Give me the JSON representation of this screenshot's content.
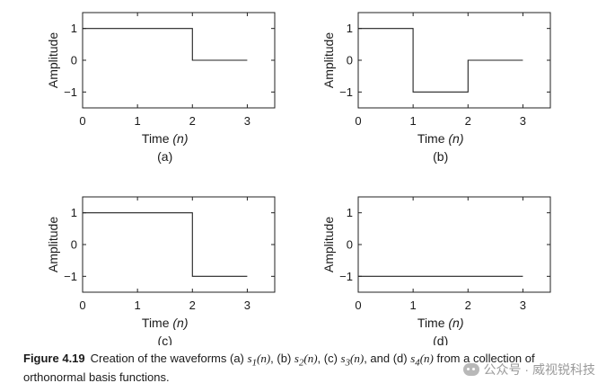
{
  "chart_data": [
    {
      "type": "line",
      "step": true,
      "panel_label": "(a)",
      "xlabel": "Time",
      "xlabel_var": "(n)",
      "ylabel": "Amplitude",
      "xlim": [
        0,
        3
      ],
      "ylim": [
        -1.5,
        1.5
      ],
      "xticks": [
        0,
        1,
        2,
        3
      ],
      "yticks": [
        1,
        0,
        -1
      ],
      "ytick_labels": [
        "1",
        "0",
        "−1"
      ],
      "x": [
        0,
        2,
        2,
        3
      ],
      "y": [
        1,
        1,
        0,
        0
      ]
    },
    {
      "type": "line",
      "step": true,
      "panel_label": "(b)",
      "xlabel": "Time",
      "xlabel_var": "(n)",
      "ylabel": "Amplitude",
      "xlim": [
        0,
        3
      ],
      "ylim": [
        -1.5,
        1.5
      ],
      "xticks": [
        0,
        1,
        2,
        3
      ],
      "yticks": [
        1,
        0,
        -1
      ],
      "ytick_labels": [
        "1",
        "0",
        "−1"
      ],
      "x": [
        0,
        1,
        1,
        2,
        2,
        3
      ],
      "y": [
        1,
        1,
        -1,
        -1,
        0,
        0
      ]
    },
    {
      "type": "line",
      "step": true,
      "panel_label": "(c)",
      "xlabel": "Time",
      "xlabel_var": "(n)",
      "ylabel": "Amplitude",
      "xlim": [
        0,
        3
      ],
      "ylim": [
        -1.5,
        1.5
      ],
      "xticks": [
        0,
        1,
        2,
        3
      ],
      "yticks": [
        1,
        0,
        -1
      ],
      "ytick_labels": [
        "1",
        "0",
        "−1"
      ],
      "x": [
        0,
        2,
        2,
        3
      ],
      "y": [
        1,
        1,
        -1,
        -1
      ]
    },
    {
      "type": "line",
      "step": true,
      "panel_label": "(d)",
      "xlabel": "Time",
      "xlabel_var": "(n)",
      "ylabel": "Amplitude",
      "xlim": [
        0,
        3
      ],
      "ylim": [
        -1.5,
        1.5
      ],
      "xticks": [
        0,
        1,
        2,
        3
      ],
      "yticks": [
        1,
        0,
        -1
      ],
      "ytick_labels": [
        "1",
        "0",
        "−1"
      ],
      "x": [
        0,
        3
      ],
      "y": [
        -1,
        -1
      ]
    }
  ],
  "caption": {
    "label": "Figure 4.19",
    "text_1": "Creation of the waveforms (a) ",
    "s1": "s",
    "sub1": "1",
    "arg": "(n)",
    "text_2": ", (b) ",
    "sub2": "2",
    "text_3": ", (c) ",
    "sub3": "3",
    "text_4": ", and (d) ",
    "sub4": "4",
    "text_5": " from a collection of orthonormal basis functions."
  },
  "watermark": {
    "text": "公众号 · 威视锐科技",
    "icon": "wechat-icon"
  }
}
